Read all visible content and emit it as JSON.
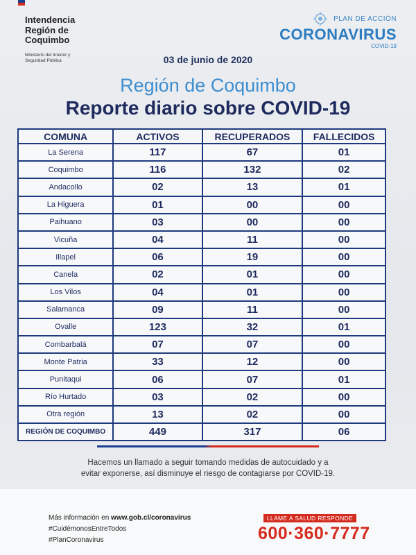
{
  "header": {
    "ministry_line1": "Intendencia",
    "ministry_line2": "Región de",
    "ministry_line3": "Coquimbo",
    "ministry_sub1": "Ministerio del Interior y",
    "ministry_sub2": "Seguridad Pública",
    "plan": "PLAN DE ACCIÓN",
    "brand": "CORONAVIRUS",
    "brand_sub": "COVID-19"
  },
  "date": "03 de junio de 2020",
  "region_title": "Región de Coquimbo",
  "report_title": "Reporte diario sobre COVID-19",
  "table": {
    "headers": [
      "COMUNA",
      "ACTIVOS",
      "RECUPERADOS",
      "FALLECIDOS"
    ],
    "rows": [
      [
        "La Serena",
        "117",
        "67",
        "01"
      ],
      [
        "Coquimbo",
        "116",
        "132",
        "02"
      ],
      [
        "Andacollo",
        "02",
        "13",
        "01"
      ],
      [
        "La Higuera",
        "01",
        "00",
        "00"
      ],
      [
        "Paihuano",
        "03",
        "00",
        "00"
      ],
      [
        "Vicuña",
        "04",
        "11",
        "00"
      ],
      [
        "Illapel",
        "06",
        "19",
        "00"
      ],
      [
        "Canela",
        "02",
        "01",
        "00"
      ],
      [
        "Los Vilos",
        "04",
        "01",
        "00"
      ],
      [
        "Salamanca",
        "09",
        "11",
        "00"
      ],
      [
        "Ovalle",
        "123",
        "32",
        "01"
      ],
      [
        "Combarbalá",
        "07",
        "07",
        "00"
      ],
      [
        "Monte Patria",
        "33",
        "12",
        "00"
      ],
      [
        "Punitaqui",
        "06",
        "07",
        "01"
      ],
      [
        "Río Hurtado",
        "03",
        "02",
        "00"
      ],
      [
        "Otra región",
        "13",
        "02",
        "00"
      ]
    ],
    "total": [
      "REGIÓN DE COQUIMBO",
      "449",
      "317",
      "06"
    ]
  },
  "message_line1": "Hacemos un llamado a seguir tomando medidas de autocuidado y a",
  "message_line2": "evitar exponerse, así disminuye el riesgo de contagiarse por COVID-19.",
  "footer": {
    "info_prefix": "Más información en ",
    "info_url": "www.gob.cl/coronavirus",
    "hashtag1": "#CuidémonosEntreTodos",
    "hashtag2": "#PlanCoronavirus",
    "hotline_tag": "LLAME A SALUD RESPONDE",
    "hotline_number": "600·360·7777"
  },
  "colors": {
    "navy": "#1e2a5e",
    "blue": "#3d8ed0",
    "red": "#d52b1e"
  }
}
